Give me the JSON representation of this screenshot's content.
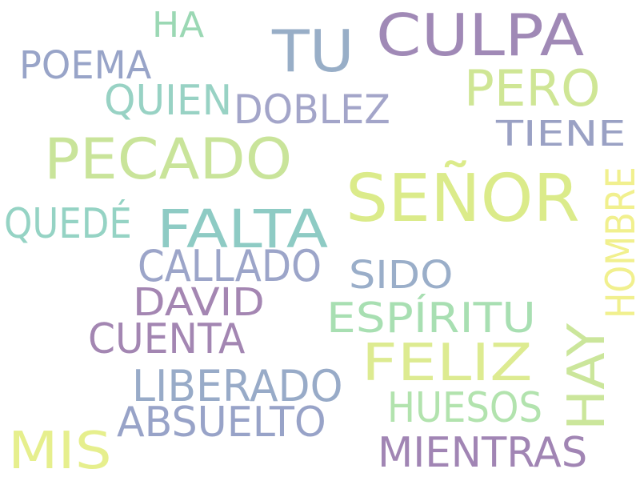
{
  "word_cloud": {
    "words": [
      {
        "text": "CULPA",
        "color": "#a089b6"
      },
      {
        "text": "TU",
        "color": "#98aec7"
      },
      {
        "text": "HA",
        "color": "#9bd8b4"
      },
      {
        "text": "POEMA",
        "color": "#98a4c8"
      },
      {
        "text": "PERO",
        "color": "#cfe695"
      },
      {
        "text": "QUIEN",
        "color": "#98d2c4"
      },
      {
        "text": "DOBLEZ",
        "color": "#a3a5c9"
      },
      {
        "text": "TIENE",
        "color": "#9aa1c4"
      },
      {
        "text": "PECADO",
        "color": "#c9e49a"
      },
      {
        "text": "SEÑOR",
        "color": "#dbeb8a"
      },
      {
        "text": "HOMBRE",
        "color": "#f1f08e"
      },
      {
        "text": "QUEDÉ",
        "color": "#95d3c4"
      },
      {
        "text": "FALTA",
        "color": "#8ecbc4"
      },
      {
        "text": "CALLADO",
        "color": "#9ca5c9"
      },
      {
        "text": "SIDO",
        "color": "#9aaec9"
      },
      {
        "text": "DAVID",
        "color": "#a486b2"
      },
      {
        "text": "ESPÍRITU",
        "color": "#a8dfb2"
      },
      {
        "text": "CUENTA",
        "color": "#a386b2"
      },
      {
        "text": "FELIZ",
        "color": "#ddeb91"
      },
      {
        "text": "HAY",
        "color": "#cbe69b"
      },
      {
        "text": "LIBERADO",
        "color": "#98abc8"
      },
      {
        "text": "HUESOS",
        "color": "#b2e3ae"
      },
      {
        "text": "ABSUELTO",
        "color": "#98a3c8"
      },
      {
        "text": "MIS",
        "color": "#e6ef8d"
      },
      {
        "text": "MIENTRAS",
        "color": "#a185b4"
      }
    ]
  }
}
